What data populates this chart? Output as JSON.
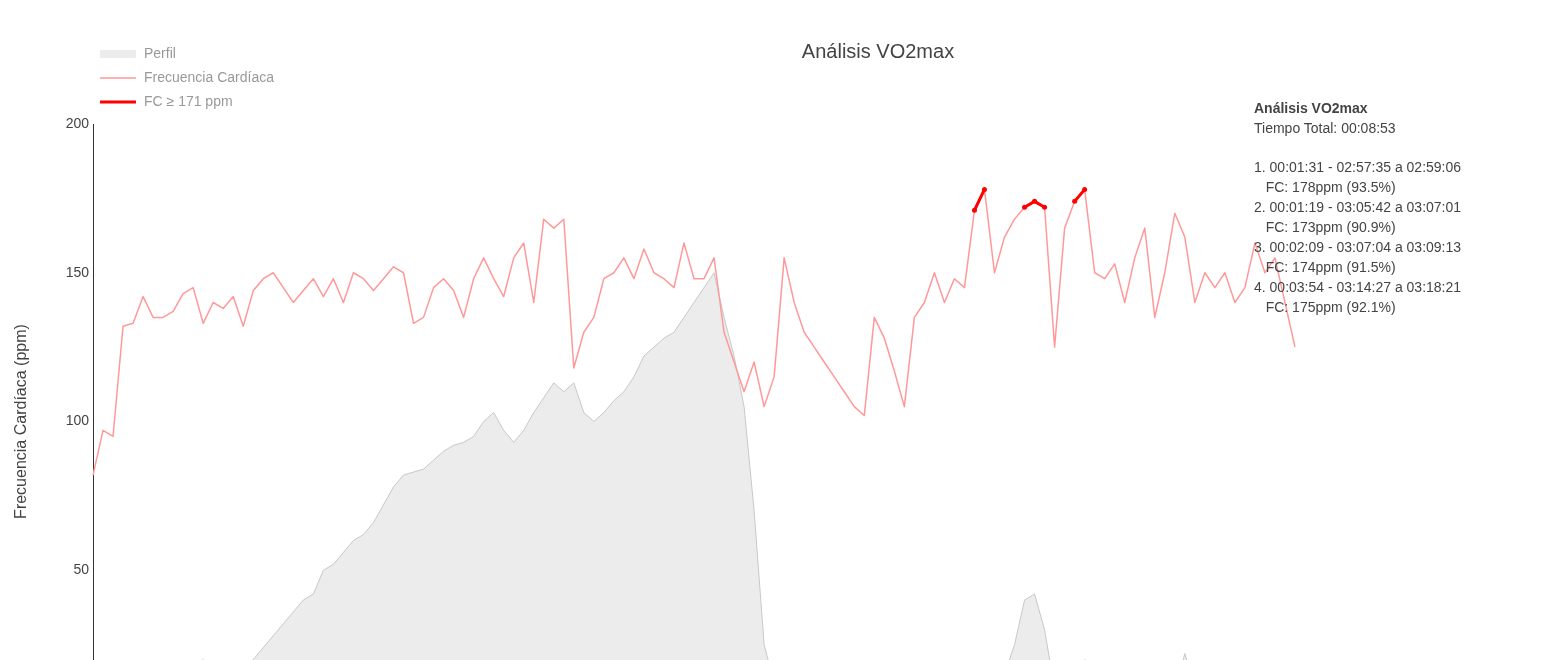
{
  "chart_data": {
    "type": "line",
    "title": "Análisis VO2max",
    "ylabel": "Frecuencia Cardíaca (ppm)",
    "categories": [
      null,
      null,
      null,
      null,
      null,
      null,
      null,
      null,
      null,
      null,
      null,
      null,
      null,
      null,
      null,
      null,
      null,
      null,
      null,
      null,
      null,
      null,
      null,
      null,
      null,
      null,
      null,
      null,
      null,
      null,
      null,
      null,
      null,
      null,
      null,
      null,
      null,
      null,
      null,
      null,
      null,
      null,
      null,
      null,
      null,
      null,
      null,
      null,
      null,
      null,
      null,
      null,
      null,
      null,
      null,
      null,
      null,
      null,
      null,
      null,
      null,
      null,
      null,
      null,
      null,
      null,
      null,
      null,
      null,
      null,
      null,
      null,
      null,
      null,
      null,
      null,
      null,
      null,
      null,
      null,
      null,
      null,
      null,
      null,
      null,
      null,
      null,
      null,
      null,
      null,
      null,
      null,
      null,
      null,
      null,
      null,
      null,
      null,
      null,
      null,
      null,
      null,
      null,
      null,
      null,
      null,
      null,
      null,
      null,
      null,
      null,
      null,
      null,
      null,
      null,
      null,
      null,
      null,
      null,
      null,
      null
    ],
    "series": [
      {
        "name": "Perfil",
        "type": "area",
        "color": "#ececec",
        "values": [
          15,
          15,
          15,
          15,
          15,
          18,
          17,
          15,
          15,
          16,
          17,
          20,
          16,
          15,
          15,
          17,
          20,
          24,
          28,
          32,
          36,
          40,
          42,
          50,
          52,
          56,
          60,
          62,
          66,
          72,
          78,
          82,
          83,
          84,
          87,
          90,
          92,
          93,
          95,
          100,
          103,
          97,
          93,
          97,
          103,
          108,
          113,
          110,
          113,
          103,
          100,
          103,
          107,
          110,
          115,
          122,
          125,
          128,
          130,
          135,
          140,
          145,
          150,
          135,
          122,
          105,
          70,
          25,
          12,
          10,
          10,
          10,
          10,
          10,
          9,
          9,
          9,
          9,
          9,
          9,
          9,
          9,
          9,
          10,
          10,
          10,
          10,
          10,
          12,
          18,
          10,
          15,
          25,
          40,
          42,
          30,
          10,
          8,
          10,
          20,
          10,
          9,
          9,
          9,
          9,
          9,
          9,
          9,
          9,
          22,
          10,
          9,
          9,
          9,
          9,
          9,
          9,
          9,
          9,
          8,
          8
        ]
      },
      {
        "name": "Frecuencia Cardíaca",
        "type": "line",
        "color": "#ff9999",
        "values": [
          82,
          97,
          95,
          132,
          133,
          142,
          135,
          135,
          137,
          143,
          145,
          133,
          140,
          138,
          142,
          132,
          144,
          148,
          150,
          145,
          140,
          144,
          148,
          142,
          148,
          140,
          150,
          148,
          144,
          148,
          152,
          150,
          133,
          135,
          145,
          148,
          144,
          135,
          148,
          155,
          148,
          142,
          155,
          160,
          140,
          168,
          165,
          168,
          118,
          130,
          135,
          148,
          150,
          155,
          148,
          158,
          150,
          148,
          145,
          160,
          148,
          148,
          155,
          130,
          120,
          110,
          120,
          105,
          115,
          155,
          140,
          130,
          125,
          120,
          115,
          110,
          105,
          102,
          135,
          128,
          117,
          105,
          135,
          140,
          150,
          140,
          148,
          145,
          171,
          178,
          150,
          162,
          168,
          172,
          174,
          172,
          125,
          165,
          174,
          178,
          150,
          148,
          153,
          140,
          155,
          165,
          135,
          150,
          170,
          162,
          140,
          150,
          145,
          150,
          140,
          145,
          160,
          150,
          155,
          140,
          125
        ]
      },
      {
        "name": "FC ≥ 171 ppm",
        "type": "line",
        "color": "#ff0000",
        "values": [
          null,
          null,
          null,
          null,
          null,
          null,
          null,
          null,
          null,
          null,
          null,
          null,
          null,
          null,
          null,
          null,
          null,
          null,
          null,
          null,
          null,
          null,
          null,
          null,
          null,
          null,
          null,
          null,
          null,
          null,
          null,
          null,
          null,
          null,
          null,
          null,
          null,
          null,
          null,
          null,
          null,
          null,
          null,
          null,
          null,
          null,
          null,
          null,
          null,
          null,
          null,
          null,
          null,
          null,
          null,
          null,
          null,
          null,
          null,
          null,
          null,
          null,
          null,
          null,
          null,
          null,
          null,
          null,
          null,
          null,
          null,
          null,
          null,
          null,
          null,
          null,
          null,
          null,
          null,
          null,
          null,
          null,
          null,
          null,
          null,
          null,
          null,
          null,
          171,
          178,
          null,
          null,
          null,
          172,
          174,
          172,
          null,
          null,
          174,
          178,
          null,
          null,
          null,
          null,
          null,
          null,
          null,
          null,
          null,
          null,
          null,
          null,
          null,
          null,
          null,
          null,
          null,
          null,
          null,
          null,
          null
        ]
      }
    ],
    "ylim": [
      0,
      200
    ],
    "yticks": [
      50,
      100,
      150,
      200
    ],
    "grid": false,
    "legend": "top left",
    "marker": "none",
    "annotations": [
      "Análisis VO2max",
      "Tiempo Total: 00:08:53",
      "1. 00:01:31 - 02:57:35 a 02:59:06",
      "   FC: 178ppm (93.5%)",
      "2. 00:01:19 - 03:05:42 a 03:07:01",
      "   FC: 173ppm (90.9%)",
      "3. 00:02:09 - 03:07:04 a 03:09:13",
      "   FC: 174ppm (91.5%)",
      "4. 00:03:54 - 03:14:27 a 03:18:21",
      "   FC: 175ppm (92.1%)"
    ]
  }
}
